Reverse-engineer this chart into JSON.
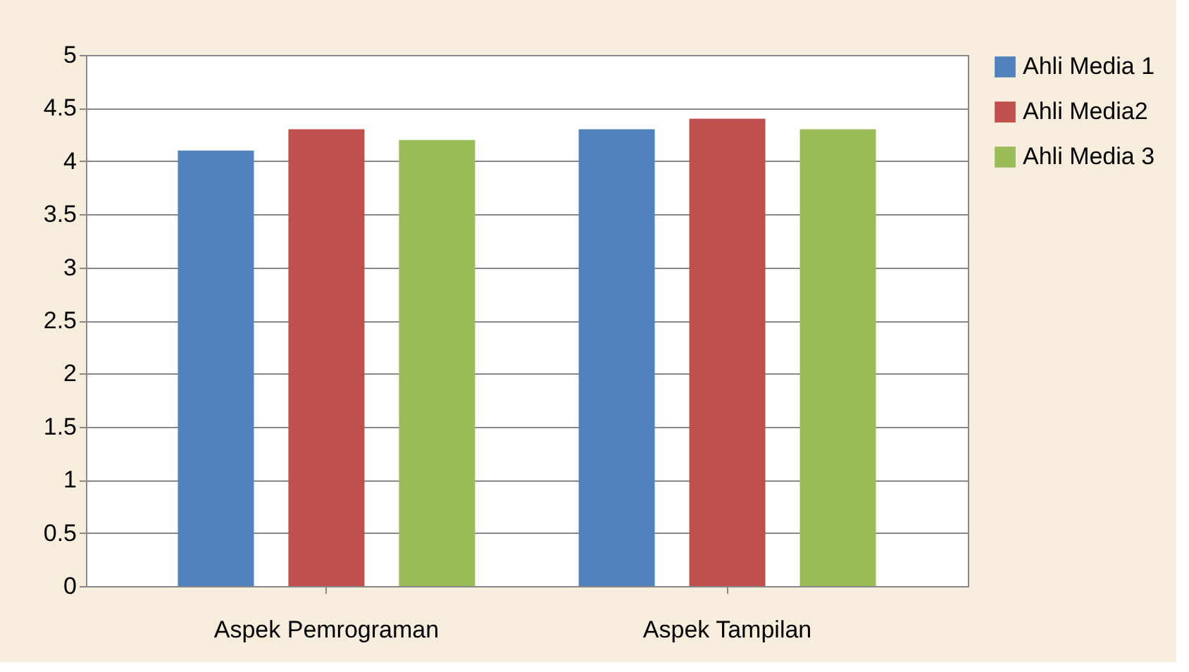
{
  "chart_data": {
    "type": "bar",
    "categories": [
      "Aspek Pemrograman",
      "Aspek Tampilan"
    ],
    "series": [
      {
        "name": "Ahli Media 1",
        "color": "#4f81bd",
        "values": [
          4.1,
          4.3
        ]
      },
      {
        "name": "Ahli Media2",
        "color": "#c0504d",
        "values": [
          4.3,
          4.4
        ]
      },
      {
        "name": "Ahli Media 3",
        "color": "#9bbb59",
        "values": [
          4.2,
          4.3
        ]
      }
    ],
    "ylim": [
      0,
      5
    ],
    "yticks": [
      0,
      0.5,
      1,
      1.5,
      2,
      2.5,
      3,
      3.5,
      4,
      4.5,
      5
    ],
    "grid": "y",
    "legend": "right"
  }
}
